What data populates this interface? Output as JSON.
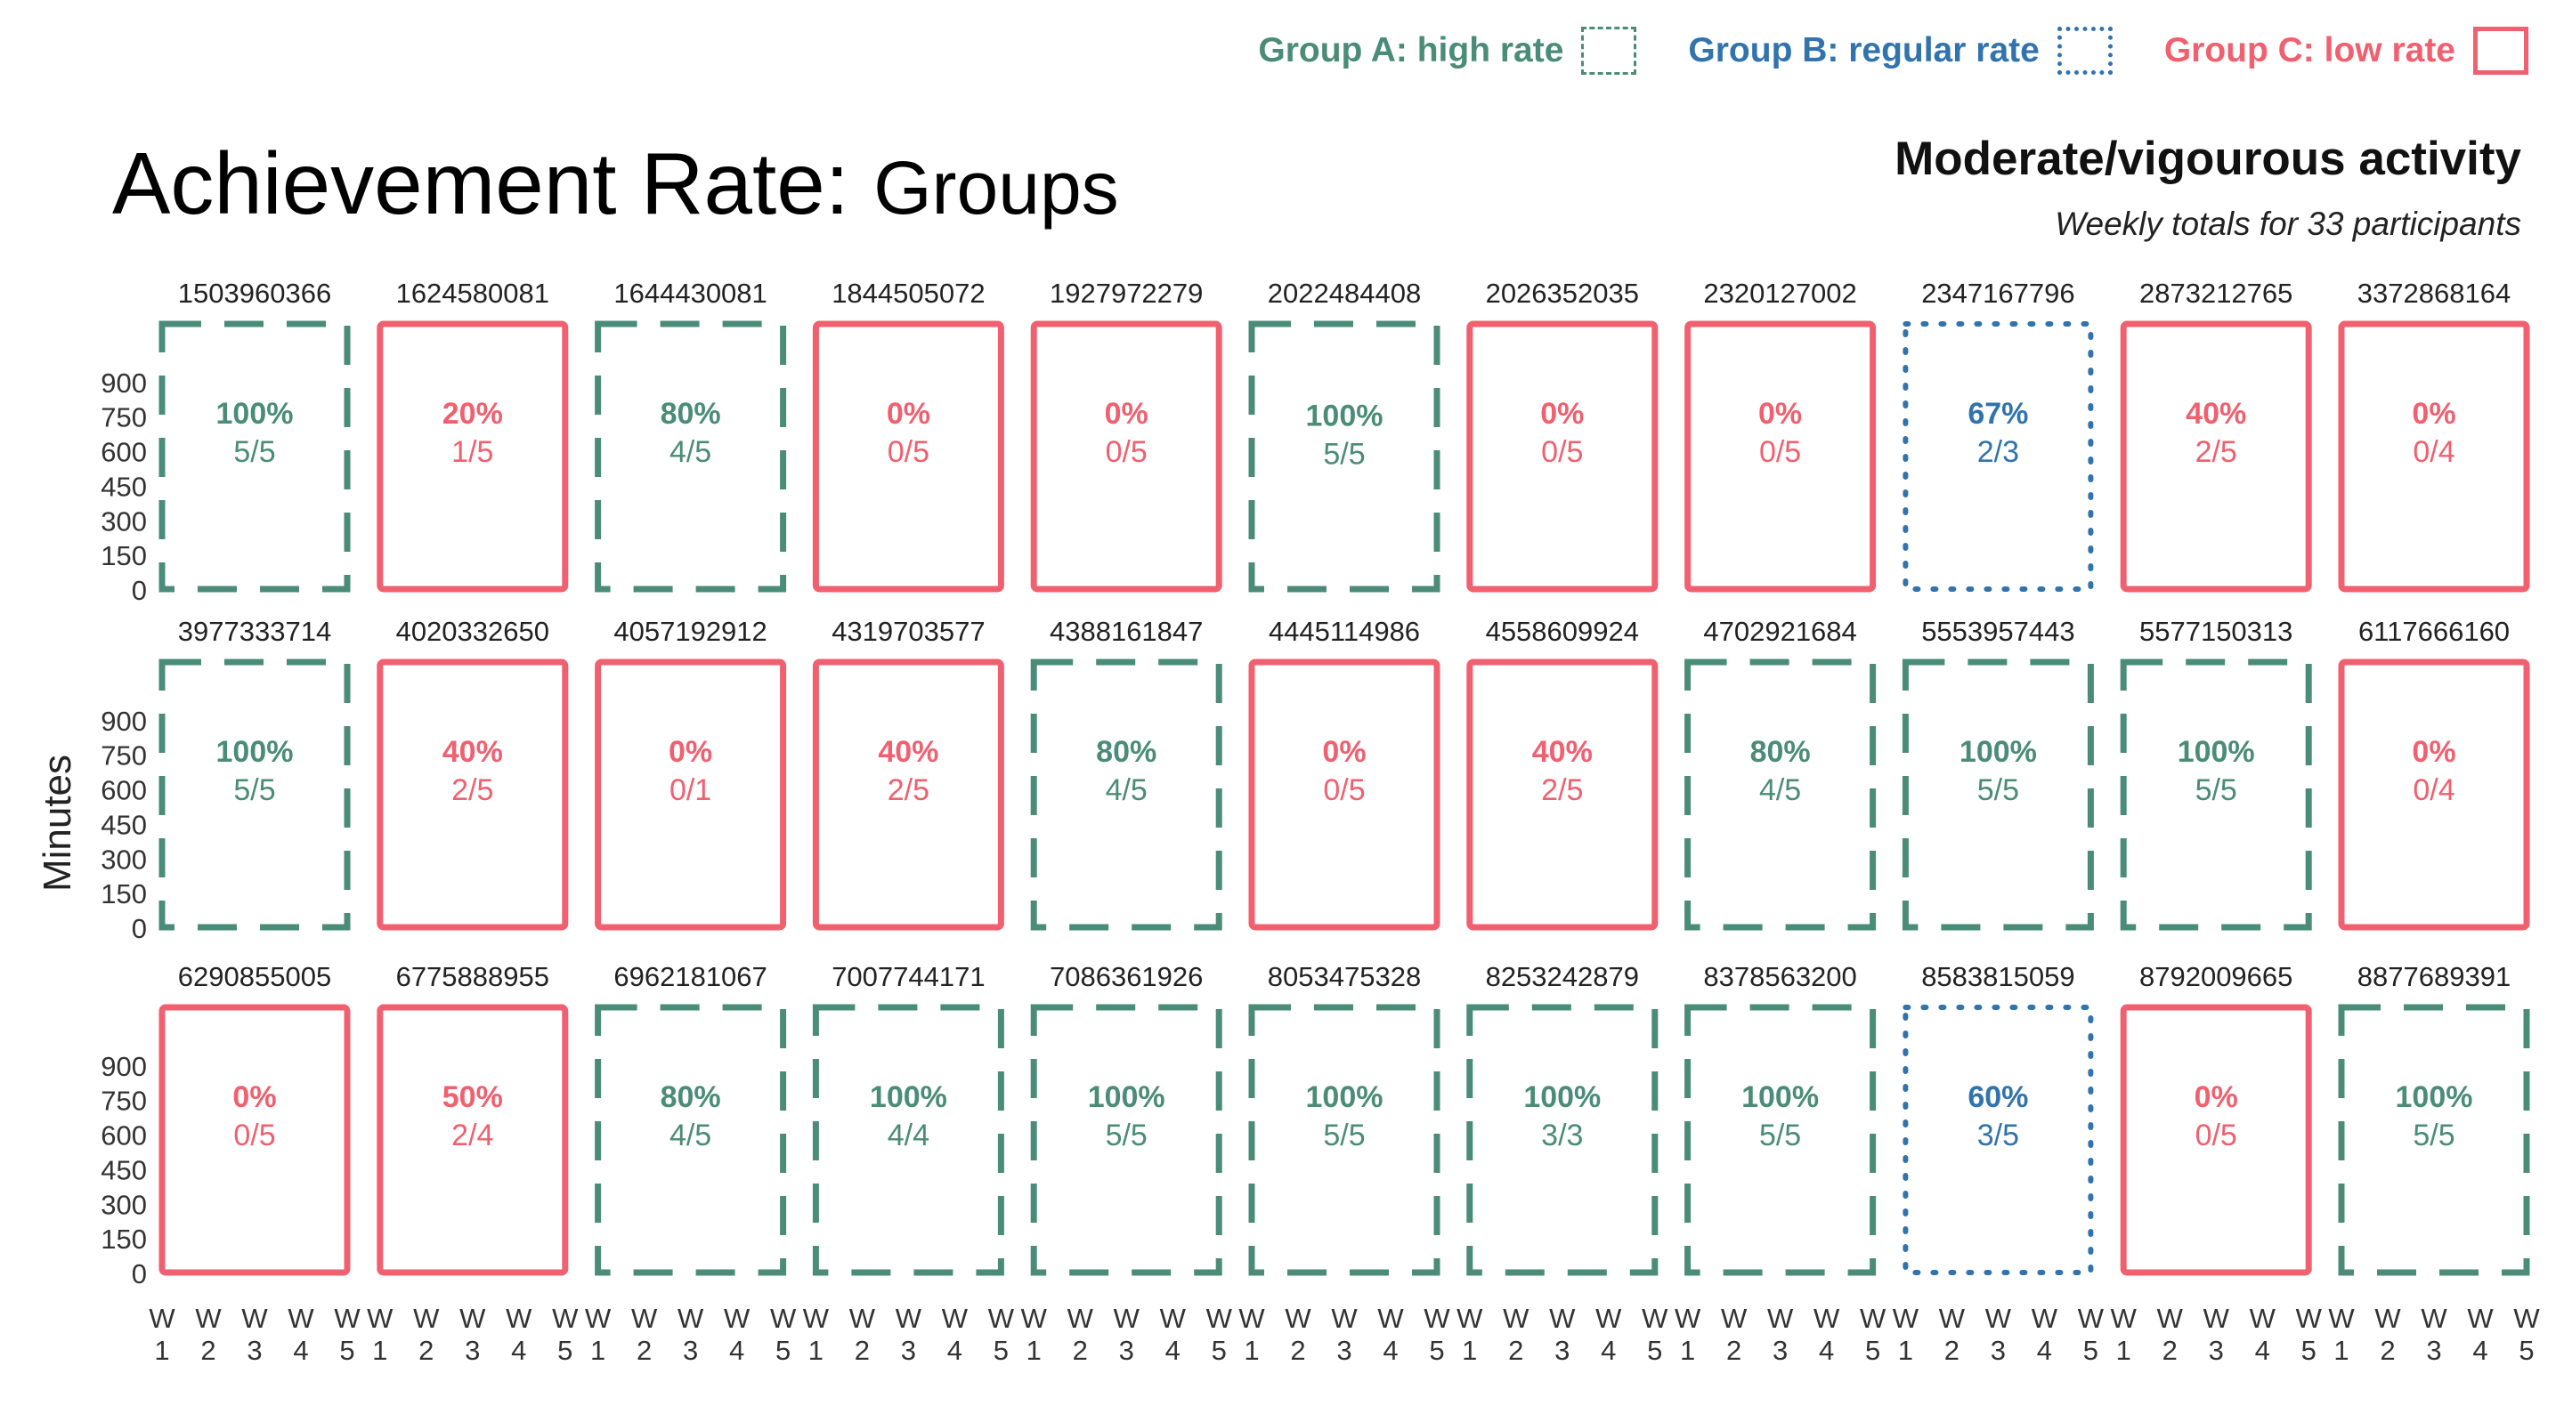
{
  "legend": {
    "a_label": "Group A: high rate",
    "b_label": "Group B: regular rate",
    "c_label": "Group C: low rate"
  },
  "colors": {
    "A": "#4a8c77",
    "B": "#3173ad",
    "C": "#f0606f"
  },
  "title": {
    "main": "Achievement Rate:",
    "sub": "Groups"
  },
  "right_header": {
    "title": "Moderate/vigourous activity",
    "subtitle": "Weekly totals for 33 participants"
  },
  "chart_data": {
    "type": "small-multiples",
    "ylabel": "Minutes",
    "yticks": [
      0,
      150,
      300,
      450,
      600,
      750,
      900
    ],
    "ylim": [
      0,
      1150
    ],
    "xticks": [
      [
        "W",
        "1"
      ],
      [
        "W",
        "2"
      ],
      [
        "W",
        "3"
      ],
      [
        "W",
        "4"
      ],
      [
        "W",
        "5"
      ]
    ],
    "panels": [
      {
        "id": "1503960366",
        "group": "A",
        "pct": "100%",
        "frac": "5/5"
      },
      {
        "id": "1624580081",
        "group": "C",
        "pct": "20%",
        "frac": "1/5"
      },
      {
        "id": "1644430081",
        "group": "A",
        "pct": "80%",
        "frac": "4/5"
      },
      {
        "id": "1844505072",
        "group": "C",
        "pct": "0%",
        "frac": "0/5"
      },
      {
        "id": "1927972279",
        "group": "C",
        "pct": "0%",
        "frac": "0/5"
      },
      {
        "id": "2022484408",
        "group": "A",
        "pct": "100%",
        "frac": "5/5"
      },
      {
        "id": "2026352035",
        "group": "C",
        "pct": "0%",
        "frac": "0/5"
      },
      {
        "id": "2320127002",
        "group": "C",
        "pct": "0%",
        "frac": "0/5"
      },
      {
        "id": "2347167796",
        "group": "B",
        "pct": "67%",
        "frac": "2/3"
      },
      {
        "id": "2873212765",
        "group": "C",
        "pct": "40%",
        "frac": "2/5"
      },
      {
        "id": "3372868164",
        "group": "C",
        "pct": "0%",
        "frac": "0/4"
      },
      {
        "id": "3977333714",
        "group": "A",
        "pct": "100%",
        "frac": "5/5"
      },
      {
        "id": "4020332650",
        "group": "C",
        "pct": "40%",
        "frac": "2/5"
      },
      {
        "id": "4057192912",
        "group": "C",
        "pct": "0%",
        "frac": "0/1"
      },
      {
        "id": "4319703577",
        "group": "C",
        "pct": "40%",
        "frac": "2/5"
      },
      {
        "id": "4388161847",
        "group": "A",
        "pct": "80%",
        "frac": "4/5"
      },
      {
        "id": "4445114986",
        "group": "C",
        "pct": "0%",
        "frac": "0/5"
      },
      {
        "id": "4558609924",
        "group": "C",
        "pct": "40%",
        "frac": "2/5"
      },
      {
        "id": "4702921684",
        "group": "A",
        "pct": "80%",
        "frac": "4/5"
      },
      {
        "id": "5553957443",
        "group": "A",
        "pct": "100%",
        "frac": "5/5"
      },
      {
        "id": "5577150313",
        "group": "A",
        "pct": "100%",
        "frac": "5/5"
      },
      {
        "id": "6117666160",
        "group": "C",
        "pct": "0%",
        "frac": "0/4"
      },
      {
        "id": "6290855005",
        "group": "C",
        "pct": "0%",
        "frac": "0/5"
      },
      {
        "id": "6775888955",
        "group": "C",
        "pct": "50%",
        "frac": "2/4"
      },
      {
        "id": "6962181067",
        "group": "A",
        "pct": "80%",
        "frac": "4/5"
      },
      {
        "id": "7007744171",
        "group": "A",
        "pct": "100%",
        "frac": "4/4"
      },
      {
        "id": "7086361926",
        "group": "A",
        "pct": "100%",
        "frac": "5/5"
      },
      {
        "id": "8053475328",
        "group": "A",
        "pct": "100%",
        "frac": "5/5"
      },
      {
        "id": "8253242879",
        "group": "A",
        "pct": "100%",
        "frac": "3/3"
      },
      {
        "id": "8378563200",
        "group": "A",
        "pct": "100%",
        "frac": "5/5"
      },
      {
        "id": "8583815059",
        "group": "B",
        "pct": "60%",
        "frac": "3/5"
      },
      {
        "id": "8792009665",
        "group": "C",
        "pct": "0%",
        "frac": "0/5"
      },
      {
        "id": "8877689391",
        "group": "A",
        "pct": "100%",
        "frac": "5/5"
      }
    ]
  }
}
